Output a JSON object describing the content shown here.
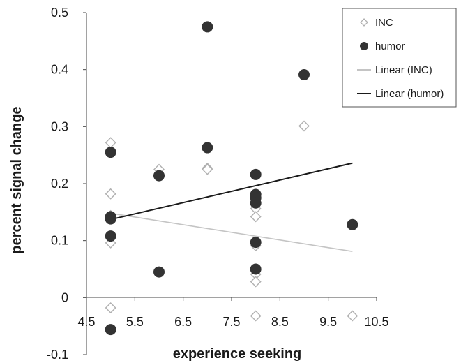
{
  "chart_data": {
    "type": "scatter",
    "xlabel": "experience seeking",
    "ylabel": "percent signal change",
    "xlim": [
      4.5,
      10.5
    ],
    "ylim": [
      -0.1,
      0.5
    ],
    "x_ticks": [
      "4.5",
      "5.5",
      "6.5",
      "7.5",
      "8.5",
      "9.5",
      "10.5"
    ],
    "y_ticks": [
      "-0.1",
      "0",
      "0.1",
      "0.2",
      "0.3",
      "0.4",
      "0.5"
    ],
    "grid": false,
    "legend_position": "top-right",
    "series": [
      {
        "name": "INC",
        "marker": "diamond-open",
        "color": "#b0b0b0",
        "points": [
          [
            5,
            0.272
          ],
          [
            5,
            0.182
          ],
          [
            5,
            0.144
          ],
          [
            5,
            0.096
          ],
          [
            5,
            -0.018
          ],
          [
            6,
            0.225
          ],
          [
            7,
            0.227
          ],
          [
            7,
            0.225
          ],
          [
            8,
            0.156
          ],
          [
            8,
            0.142
          ],
          [
            8,
            0.091
          ],
          [
            8,
            0.041
          ],
          [
            8,
            0.028
          ],
          [
            8,
            -0.032
          ],
          [
            9,
            0.301
          ],
          [
            10,
            -0.032
          ]
        ]
      },
      {
        "name": "humor",
        "marker": "circle-filled",
        "color": "#333333",
        "points": [
          [
            5,
            0.255
          ],
          [
            5,
            0.142
          ],
          [
            5,
            0.138
          ],
          [
            5,
            0.108
          ],
          [
            5,
            -0.056
          ],
          [
            6,
            0.214
          ],
          [
            6,
            0.045
          ],
          [
            7,
            0.475
          ],
          [
            7,
            0.263
          ],
          [
            8,
            0.216
          ],
          [
            8,
            0.181
          ],
          [
            8,
            0.175
          ],
          [
            8,
            0.166
          ],
          [
            8,
            0.097
          ],
          [
            8,
            0.05
          ],
          [
            9,
            0.391
          ],
          [
            10,
            0.128
          ]
        ]
      }
    ],
    "trendlines": [
      {
        "name": "Linear (INC)",
        "color": "#c4c4c4",
        "x": [
          5,
          10
        ],
        "y": [
          0.148,
          0.081
        ]
      },
      {
        "name": "Linear (humor)",
        "color": "#1a1a1a",
        "x": [
          5,
          10
        ],
        "y": [
          0.137,
          0.236
        ]
      }
    ]
  }
}
